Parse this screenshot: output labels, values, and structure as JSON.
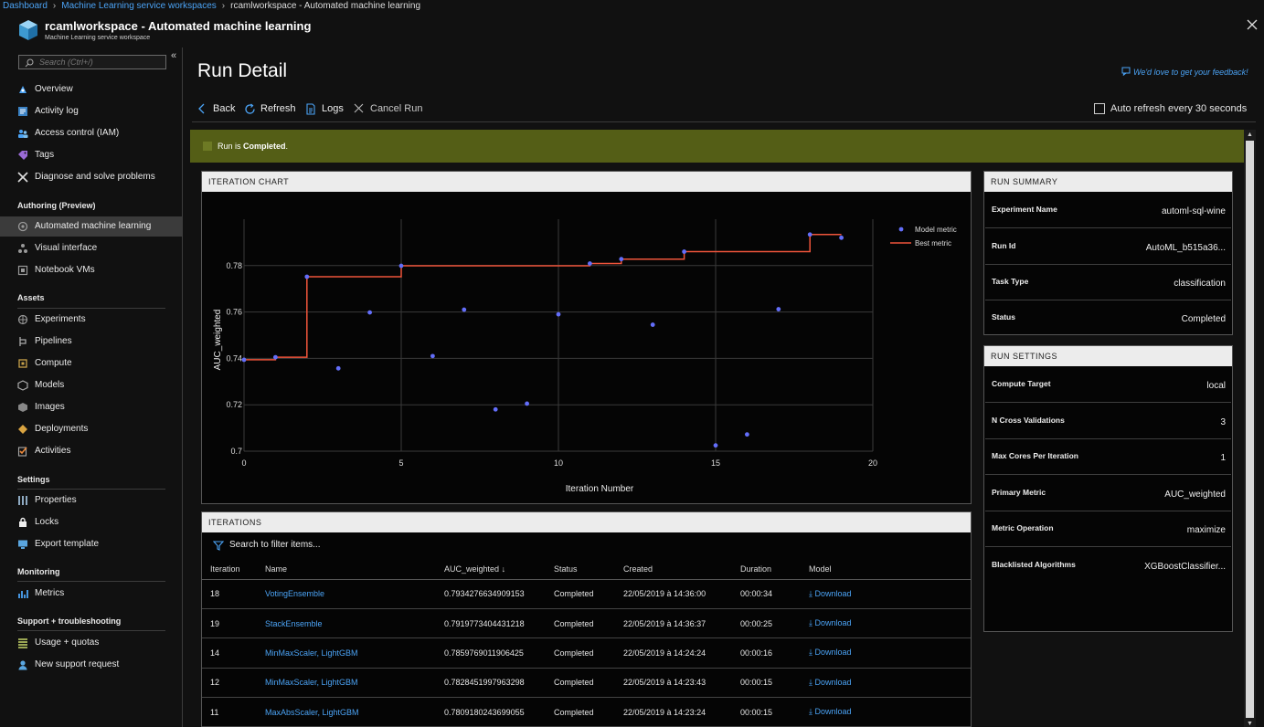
{
  "breadcrumb": {
    "items": [
      "Dashboard",
      "Machine Learning service workspaces",
      "rcamlworkspace - Automated machine learning"
    ]
  },
  "header": {
    "title": "rcamlworkspace - Automated machine learning",
    "subtitle": "Machine Learning service workspace"
  },
  "sidebar": {
    "search_placeholder": "Search (Ctrl+/)",
    "collapse_glyph": "«",
    "items": [
      {
        "label": "Overview",
        "icon": "overview-icon"
      },
      {
        "label": "Activity log",
        "icon": "activity-log-icon"
      },
      {
        "label": "Access control (IAM)",
        "icon": "access-control-icon"
      },
      {
        "label": "Tags",
        "icon": "tag-icon"
      },
      {
        "label": "Diagnose and solve problems",
        "icon": "wrench-icon"
      }
    ],
    "sections": [
      {
        "title": "Authoring (Preview)",
        "items": [
          {
            "label": "Automated machine learning",
            "icon": "automl-icon",
            "active": true
          },
          {
            "label": "Visual interface",
            "icon": "visual-interface-icon"
          },
          {
            "label": "Notebook VMs",
            "icon": "notebook-icon"
          }
        ]
      },
      {
        "title": "Assets",
        "items": [
          {
            "label": "Experiments",
            "icon": "experiments-icon"
          },
          {
            "label": "Pipelines",
            "icon": "pipelines-icon"
          },
          {
            "label": "Compute",
            "icon": "compute-icon"
          },
          {
            "label": "Models",
            "icon": "models-icon"
          },
          {
            "label": "Images",
            "icon": "images-icon"
          },
          {
            "label": "Deployments",
            "icon": "deployments-icon"
          },
          {
            "label": "Activities",
            "icon": "activities-icon"
          }
        ]
      },
      {
        "title": "Settings",
        "items": [
          {
            "label": "Properties",
            "icon": "properties-icon"
          },
          {
            "label": "Locks",
            "icon": "lock-icon"
          },
          {
            "label": "Export template",
            "icon": "export-template-icon"
          }
        ]
      },
      {
        "title": "Monitoring",
        "items": [
          {
            "label": "Metrics",
            "icon": "metrics-icon"
          }
        ]
      },
      {
        "title": "Support + troubleshooting",
        "items": [
          {
            "label": "Usage + quotas",
            "icon": "usage-icon"
          },
          {
            "label": "New support request",
            "icon": "support-icon"
          }
        ]
      }
    ]
  },
  "page": {
    "title": "Run Detail",
    "feedback": "We'd love to get your feedback!"
  },
  "toolbar": {
    "back": "Back",
    "refresh": "Refresh",
    "logs": "Logs",
    "cancel": "Cancel Run",
    "auto_refresh": "Auto refresh every 30 seconds",
    "auto_refresh_checked": false
  },
  "status": {
    "prefix": "Run is ",
    "value": "Completed",
    "suffix": "."
  },
  "iteration_chart": {
    "header": "ITERATION CHART"
  },
  "chart_data": {
    "type": "scatter",
    "title": "",
    "xlabel": "Iteration Number",
    "ylabel": "AUC_weighted",
    "xlim": [
      0,
      20
    ],
    "ylim": [
      0.7,
      0.8
    ],
    "xticks": [
      0,
      5,
      10,
      15,
      20
    ],
    "yticks": [
      0.7,
      0.72,
      0.74,
      0.76,
      0.78
    ],
    "ytick_labels": [
      "0.7",
      "0.72",
      "0.74",
      "0.76",
      "0.78"
    ],
    "grid": true,
    "legend_position": "top-right",
    "series": [
      {
        "name": "Model metric",
        "kind": "scatter",
        "color": "#636efa",
        "x": [
          0,
          1,
          2,
          3,
          4,
          5,
          6,
          7,
          8,
          9,
          10,
          11,
          12,
          13,
          14,
          15,
          16,
          17,
          18,
          19
        ],
        "y": [
          0.7394,
          0.7405,
          0.7752,
          0.7357,
          0.7598,
          0.7799,
          0.741,
          0.761,
          0.718,
          0.7205,
          0.759,
          0.7809,
          0.7828,
          0.7545,
          0.786,
          0.7025,
          0.7072,
          0.7612,
          0.7934,
          0.792
        ]
      },
      {
        "name": "Best metric",
        "kind": "step",
        "color": "#ef553b",
        "x": [
          0,
          1,
          2,
          3,
          4,
          5,
          6,
          7,
          8,
          9,
          10,
          11,
          12,
          13,
          14,
          15,
          16,
          17,
          18,
          19
        ],
        "y": [
          0.7394,
          0.7405,
          0.7752,
          0.7752,
          0.7752,
          0.7799,
          0.7799,
          0.7799,
          0.7799,
          0.7799,
          0.7799,
          0.7809,
          0.7828,
          0.7828,
          0.786,
          0.786,
          0.786,
          0.786,
          0.7934,
          0.7934
        ]
      }
    ]
  },
  "iterations": {
    "header": "ITERATIONS",
    "filter_placeholder": "Search to filter items...",
    "columns": [
      "Iteration",
      "Name",
      "AUC_weighted",
      "Status",
      "Created",
      "Duration",
      "Model"
    ],
    "sort_glyph": "↓",
    "download_label": "Download",
    "rows": [
      {
        "iteration": "18",
        "name": "VotingEnsemble",
        "auc": "0.7934276634909153",
        "status": "Completed",
        "created": "22/05/2019 à 14:36:00",
        "duration": "00:00:34"
      },
      {
        "iteration": "19",
        "name": "StackEnsemble",
        "auc": "0.7919773404431218",
        "status": "Completed",
        "created": "22/05/2019 à 14:36:37",
        "duration": "00:00:25"
      },
      {
        "iteration": "14",
        "name": "MinMaxScaler, LightGBM",
        "auc": "0.7859769011906425",
        "status": "Completed",
        "created": "22/05/2019 à 14:24:24",
        "duration": "00:00:16"
      },
      {
        "iteration": "12",
        "name": "MinMaxScaler, LightGBM",
        "auc": "0.7828451997963298",
        "status": "Completed",
        "created": "22/05/2019 à 14:23:43",
        "duration": "00:00:15"
      },
      {
        "iteration": "11",
        "name": "MaxAbsScaler, LightGBM",
        "auc": "0.7809180243699055",
        "status": "Completed",
        "created": "22/05/2019 à 14:23:24",
        "duration": "00:00:15"
      }
    ]
  },
  "run_summary": {
    "header": "RUN SUMMARY",
    "rows": [
      {
        "key": "Experiment Name",
        "value": "automl-sql-wine"
      },
      {
        "key": "Run Id",
        "value": "AutoML_b515a36..."
      },
      {
        "key": "Task Type",
        "value": "classification"
      },
      {
        "key": "Status",
        "value": "Completed"
      }
    ]
  },
  "run_settings": {
    "header": "RUN SETTINGS",
    "rows": [
      {
        "key": "Compute Target",
        "value": "local"
      },
      {
        "key": "N Cross Validations",
        "value": "3"
      },
      {
        "key": "Max Cores Per Iteration",
        "value": "1"
      },
      {
        "key": "Primary Metric",
        "value": "AUC_weighted"
      },
      {
        "key": "Metric Operation",
        "value": "maximize"
      },
      {
        "key": "Blacklisted Algorithms",
        "value": "XGBoostClassifier..."
      }
    ]
  },
  "colors": {
    "accent": "#4ba3f5",
    "status_bg": "#545e16",
    "model_metric": "#636efa",
    "best_metric": "#ef553b"
  }
}
